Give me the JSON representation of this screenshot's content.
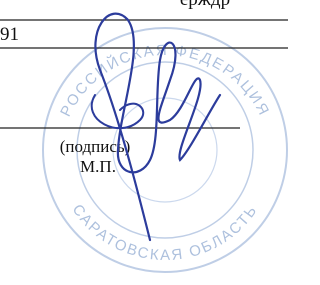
{
  "header": {
    "partial_text": "ерждр"
  },
  "row": {
    "number": "91"
  },
  "signature": {
    "caption": "(подпись)",
    "seal_mark": "М.П."
  },
  "stamp": {
    "top_text": "РОССИЙСКАЯ ФЕДЕРАЦИЯ",
    "bottom_text": "САРАТОВСКАЯ ОБЛАСТЬ"
  }
}
